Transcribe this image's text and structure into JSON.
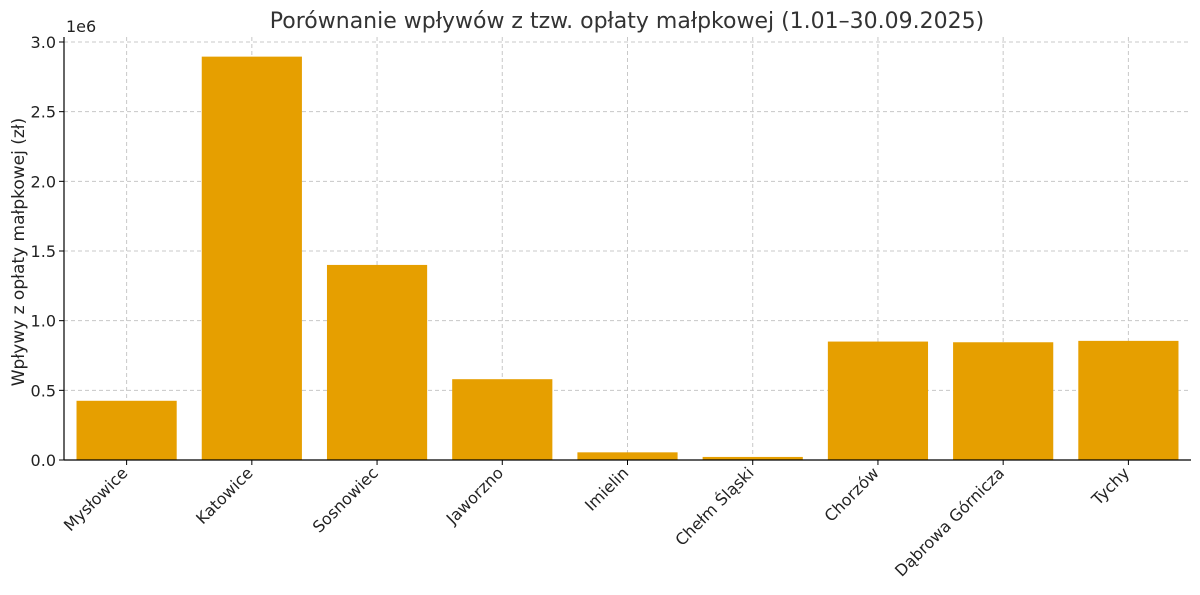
{
  "chart_data": {
    "type": "bar",
    "title": "Porównanie wpływów z tzw. opłaty małpkowej (1.01–30.09.2025)",
    "xlabel": "",
    "ylabel": "Wpływy z opłaty małpkowej (zł)",
    "y_offset_label": "1e6",
    "categories": [
      "Mysłowice",
      "Katowice",
      "Sosnowiec",
      "Jaworzno",
      "Imielin",
      "Chełm Śląski",
      "Chorzów",
      "Dąbrowa Górnicza",
      "Tychy"
    ],
    "values": [
      425000,
      2895000,
      1400000,
      580000,
      55000,
      22000,
      850000,
      845000,
      855000
    ],
    "ylim": [
      0,
      3000000
    ],
    "yticks": [
      0,
      500000,
      1000000,
      1500000,
      2000000,
      2500000,
      3000000
    ],
    "ytick_labels": [
      "0.0",
      "0.5",
      "1.0",
      "1.5",
      "2.0",
      "2.5",
      "3.0"
    ],
    "grid": true,
    "bar_color": "#E69F00"
  }
}
